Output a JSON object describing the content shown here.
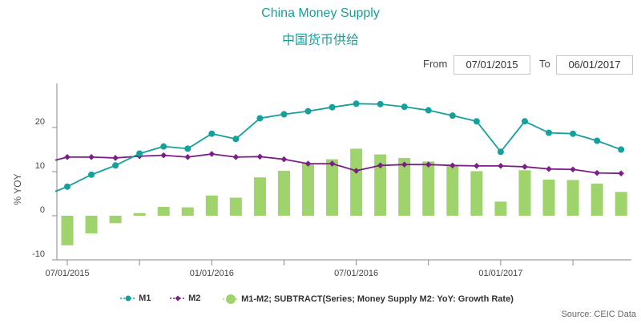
{
  "title": "China Money Supply",
  "subtitle": "中国货币供给",
  "range": {
    "from_label": "From",
    "from_value": "07/01/2015",
    "to_label": "To",
    "to_value": "06/01/2017"
  },
  "source": "Source: CEIC Data",
  "colors": {
    "m1": "#14a09c",
    "m2": "#7a1f86",
    "diff": "#9fd36b",
    "title": "#1a9e96"
  },
  "chart_data": {
    "type": "line",
    "ylabel": "% YOY",
    "ylim": [
      -10,
      30
    ],
    "yticks": [
      -10,
      0,
      10,
      20
    ],
    "xlim": [
      0,
      24
    ],
    "xtick_labels": [
      {
        "label": "07/01/2015",
        "x": 0
      },
      {
        "label": "01/01/2016",
        "x": 6
      },
      {
        "label": "07/01/2016",
        "x": 12
      },
      {
        "label": "01/01/2017",
        "x": 18
      }
    ],
    "grid": false,
    "legend_position": "bottom",
    "series": [
      {
        "name": "M1",
        "kind": "line",
        "x": [
          -0.5,
          0,
          1,
          2,
          3,
          4,
          5,
          6,
          7,
          8,
          9,
          10,
          11,
          12,
          13,
          14,
          15,
          16,
          17,
          18,
          19,
          20,
          21,
          22,
          23
        ],
        "values": [
          5.5,
          6.6,
          9.3,
          11.4,
          14.1,
          15.7,
          15.2,
          18.6,
          17.4,
          22.1,
          23.0,
          23.7,
          24.6,
          25.4,
          25.3,
          24.7,
          23.9,
          22.7,
          21.4,
          14.5,
          21.4,
          18.8,
          18.6,
          17.0,
          15.0
        ],
        "markers": [
          false,
          true,
          true,
          true,
          true,
          true,
          true,
          true,
          true,
          true,
          true,
          true,
          true,
          true,
          true,
          true,
          true,
          true,
          true,
          true,
          true,
          true,
          true,
          true,
          true
        ]
      },
      {
        "name": "M2",
        "kind": "line",
        "x": [
          -0.5,
          0,
          1,
          2,
          3,
          4,
          5,
          6,
          7,
          8,
          9,
          10,
          11,
          12,
          13,
          14,
          15,
          16,
          17,
          18,
          19,
          20,
          21,
          22,
          23
        ],
        "values": [
          12.6,
          13.3,
          13.3,
          13.1,
          13.5,
          13.7,
          13.3,
          14.0,
          13.3,
          13.4,
          12.8,
          11.8,
          11.8,
          10.2,
          11.4,
          11.6,
          11.6,
          11.4,
          11.3,
          11.3,
          11.1,
          10.6,
          10.5,
          9.7,
          9.6
        ],
        "markers": [
          false,
          true,
          true,
          true,
          true,
          true,
          true,
          true,
          true,
          true,
          true,
          true,
          true,
          true,
          true,
          true,
          true,
          true,
          true,
          true,
          true,
          true,
          true,
          true,
          true
        ]
      },
      {
        "name": "M1-M2; SUBTRACT(Series; Money Supply M2: YoY: Growth Rate)",
        "kind": "bar",
        "x": [
          0,
          1,
          2,
          3,
          4,
          5,
          6,
          7,
          8,
          9,
          10,
          11,
          12,
          13,
          14,
          15,
          16,
          17,
          18,
          19,
          20,
          21,
          22,
          23
        ],
        "values": [
          -6.7,
          -4.0,
          -1.7,
          0.6,
          2.0,
          1.9,
          4.6,
          4.1,
          8.7,
          10.2,
          11.9,
          12.8,
          15.2,
          13.9,
          13.1,
          12.3,
          11.3,
          10.1,
          3.2,
          10.3,
          8.2,
          8.1,
          7.3,
          5.4
        ]
      }
    ]
  }
}
